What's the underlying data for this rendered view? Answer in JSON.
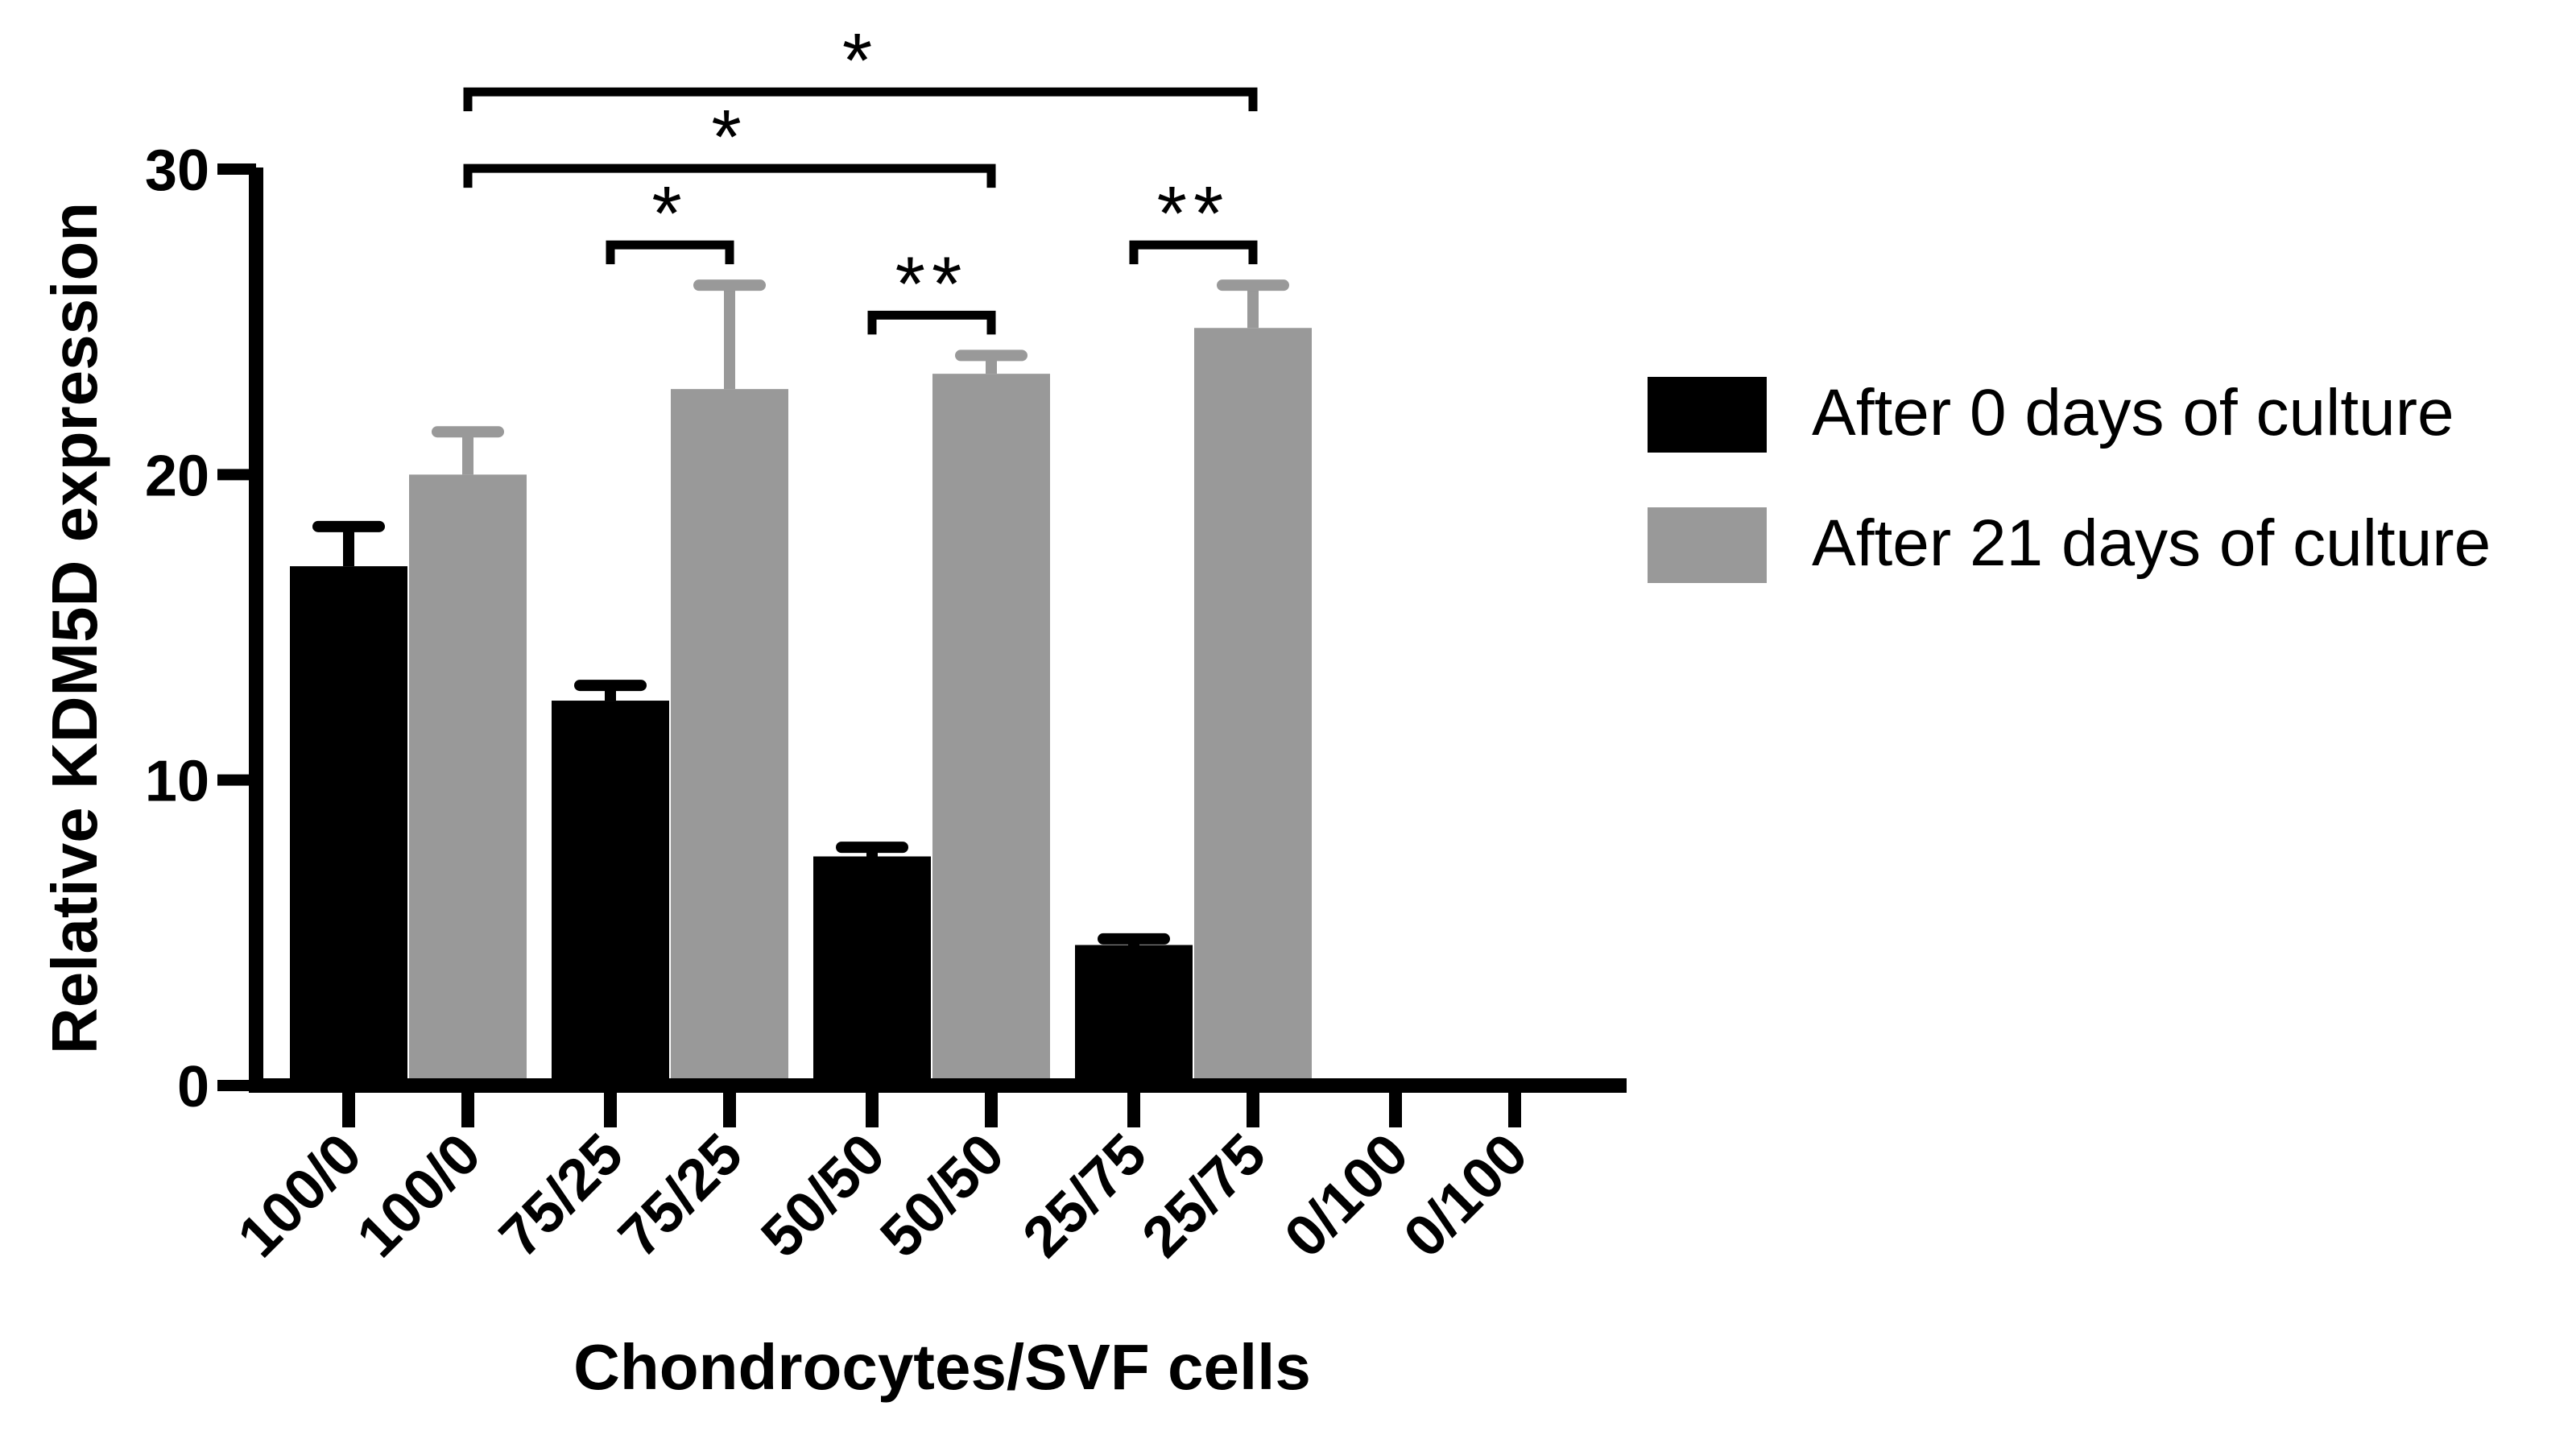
{
  "chart_data": {
    "type": "bar",
    "title": "",
    "xlabel": "Chondrocytes/SVF cells",
    "ylabel": "Relative KDM5D expression",
    "ylim": [
      0,
      30
    ],
    "yticks": [
      0,
      10,
      20,
      30
    ],
    "tick_labels": [
      "100/0",
      "100/0",
      "75/25",
      "75/25",
      "50/50",
      "50/50",
      "25/75",
      "25/75",
      "0/100",
      "0/100"
    ],
    "bars": [
      {
        "label": "100/0",
        "series": 0,
        "value": 17.0,
        "error": 1.3
      },
      {
        "label": "100/0",
        "series": 1,
        "value": 20.0,
        "error": 1.4
      },
      {
        "label": "75/25",
        "series": 0,
        "value": 12.6,
        "error": 0.5
      },
      {
        "label": "75/25",
        "series": 1,
        "value": 22.8,
        "error": 3.4
      },
      {
        "label": "50/50",
        "series": 0,
        "value": 7.5,
        "error": 0.3
      },
      {
        "label": "50/50",
        "series": 1,
        "value": 23.3,
        "error": 0.6
      },
      {
        "label": "25/75",
        "series": 0,
        "value": 4.6,
        "error": 0.2
      },
      {
        "label": "25/75",
        "series": 1,
        "value": 24.8,
        "error": 1.4
      },
      {
        "label": "0/100",
        "series": 0,
        "value": 0,
        "error": 0
      },
      {
        "label": "0/100",
        "series": 1,
        "value": 0,
        "error": 0
      }
    ],
    "series": [
      {
        "name": "After 0 days of culture",
        "color": "#000000"
      },
      {
        "name": "After 21 days of culture",
        "color": "#999999"
      }
    ],
    "significance": [
      {
        "from": 1,
        "to": 7,
        "label": "*"
      },
      {
        "from": 1,
        "to": 5,
        "label": "*"
      },
      {
        "from": 2,
        "to": 3,
        "label": "*"
      },
      {
        "from": 4,
        "to": 5,
        "label": "**"
      },
      {
        "from": 6,
        "to": 7,
        "label": "**"
      }
    ],
    "legend_position": "right"
  }
}
